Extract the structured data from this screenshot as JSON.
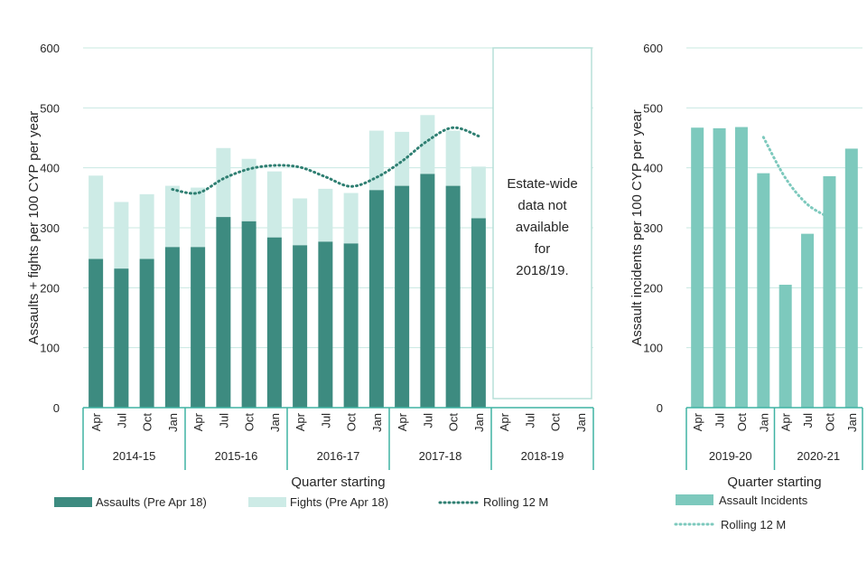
{
  "chart_data": [
    {
      "type": "bar",
      "stacked": true,
      "ylabel": "Assaults + fights per 100 CYP per year",
      "xlabel": "Quarter starting",
      "ylim": [
        0,
        600
      ],
      "yticks": [
        0,
        100,
        200,
        300,
        400,
        500,
        600
      ],
      "categories": [
        "Apr",
        "Jul",
        "Oct",
        "Jan",
        "Apr",
        "Jul",
        "Oct",
        "Jan",
        "Apr",
        "Jul",
        "Oct",
        "Jan",
        "Apr",
        "Jul",
        "Oct",
        "Jan",
        "Apr",
        "Jul",
        "Oct",
        "Jan"
      ],
      "groups": [
        {
          "label": "2014-15",
          "start": 0,
          "count": 4
        },
        {
          "label": "2015-16",
          "start": 4,
          "count": 4
        },
        {
          "label": "2016-17",
          "start": 8,
          "count": 4
        },
        {
          "label": "2017-18",
          "start": 12,
          "count": 4
        },
        {
          "label": "2018-19",
          "start": 16,
          "count": 4
        }
      ],
      "series": [
        {
          "name": "Assaults (Pre Apr 18)",
          "type": "bar",
          "color": "#3d8b80",
          "values": [
            248,
            232,
            248,
            268,
            268,
            318,
            311,
            284,
            271,
            277,
            274,
            363,
            370,
            390,
            370,
            316,
            null,
            null,
            null,
            null
          ]
        },
        {
          "name": "Fights (Pre Apr 18)",
          "type": "bar",
          "color": "#cdebe6",
          "values": [
            139,
            111,
            108,
            102,
            99,
            115,
            104,
            110,
            78,
            88,
            84,
            99,
            90,
            98,
            92,
            86,
            null,
            null,
            null,
            null
          ]
        },
        {
          "name": "Rolling 12 M",
          "type": "line",
          "style": "dotted",
          "color": "#2f7f72",
          "values": [
            null,
            null,
            null,
            364,
            358,
            382,
            398,
            404,
            401,
            385,
            369,
            384,
            411,
            445,
            467,
            453,
            null,
            null,
            null,
            null
          ]
        }
      ],
      "annotation": {
        "text": [
          "Estate-wide",
          "data not",
          "available",
          "for",
          "2018/19."
        ],
        "spans_groups": [
          "2018-19"
        ]
      }
    },
    {
      "type": "bar",
      "ylabel": "Assault incidents per 100 CYP per year",
      "xlabel": "Quarter starting",
      "ylim": [
        0,
        600
      ],
      "yticks": [
        0,
        100,
        200,
        300,
        400,
        500,
        600
      ],
      "categories": [
        "Apr",
        "Jul",
        "Oct",
        "Jan",
        "Apr",
        "Jul",
        "Oct",
        "Jan"
      ],
      "groups": [
        {
          "label": "2019-20",
          "start": 0,
          "count": 4
        },
        {
          "label": "2020-21",
          "start": 4,
          "count": 4
        }
      ],
      "series": [
        {
          "name": "Assault Incidents",
          "type": "bar",
          "color": "#7dc9bd",
          "values": [
            467,
            466,
            468,
            391,
            205,
            290,
            386,
            432
          ]
        },
        {
          "name": "Rolling 12 M",
          "type": "line",
          "style": "dotted",
          "color": "#7dc9bd",
          "values": [
            null,
            null,
            null,
            451,
            383,
            339,
            317,
            null
          ]
        }
      ]
    }
  ]
}
